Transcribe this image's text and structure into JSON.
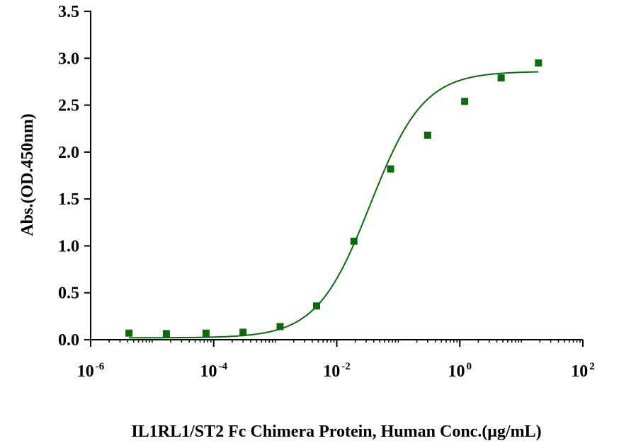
{
  "chart_data": {
    "type": "scatter",
    "xlabel": "IL1RL1/ST2 Fc Chimera Protein, Human   Conc.(μg/mL)",
    "ylabel": "Abs.(OD.450nm)",
    "x_scale": "log",
    "xlim": [
      1e-06,
      100
    ],
    "ylim": [
      0,
      3.5
    ],
    "x_ticks": [
      {
        "base": "10",
        "exp": "-6",
        "value": 1e-06
      },
      {
        "base": "10",
        "exp": "-4",
        "value": 0.0001
      },
      {
        "base": "10",
        "exp": "-2",
        "value": 0.01
      },
      {
        "base": "10",
        "exp": "0",
        "value": 1
      },
      {
        "base": "10",
        "exp": "2",
        "value": 100
      }
    ],
    "y_ticks": [
      "0.0",
      "0.5",
      "1.0",
      "1.5",
      "2.0",
      "2.5",
      "3.0",
      "3.5"
    ],
    "grid": false,
    "color": "#0b6b0b",
    "points": [
      {
        "x": 4.2e-06,
        "y": 0.07
      },
      {
        "x": 1.7e-05,
        "y": 0.065
      },
      {
        "x": 7.5e-05,
        "y": 0.07
      },
      {
        "x": 0.0003,
        "y": 0.08
      },
      {
        "x": 0.0012,
        "y": 0.14
      },
      {
        "x": 0.0047,
        "y": 0.36
      },
      {
        "x": 0.019,
        "y": 1.05
      },
      {
        "x": 0.075,
        "y": 1.82
      },
      {
        "x": 0.3,
        "y": 2.18
      },
      {
        "x": 1.2,
        "y": 2.54
      },
      {
        "x": 4.7,
        "y": 2.79
      },
      {
        "x": 19,
        "y": 2.95
      }
    ],
    "fit_curve": {
      "type": "4PL",
      "bottom": 0.02,
      "top": 2.86,
      "ec50": 0.035,
      "hill": 1.0,
      "x_range": [
        4.2e-06,
        19
      ]
    }
  }
}
